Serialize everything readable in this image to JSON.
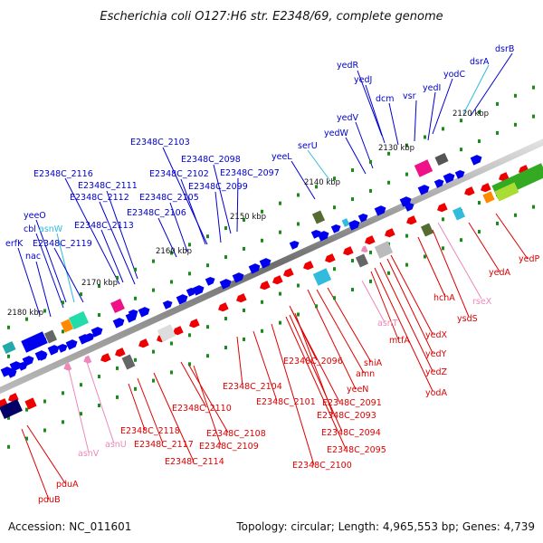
{
  "title": "Escherichia coli O127:H6 str. E2348/69, complete genome",
  "footer": {
    "accession": "Accession: NC_011601",
    "summary": "Topology: circular; Length: 4,965,553 bp; Genes: 4,739"
  },
  "colors": {
    "plus_strand_label": "#0000cc",
    "minus_strand_label": "#dd0000",
    "rna_plus": "#33bbdd",
    "rna_minus": "#ee88bb",
    "ruler": "#1a8a1a"
  },
  "ticks": [
    "2120 kbp",
    "2130 kbp",
    "2140 kbp",
    "2150 kbp",
    "2160 kbp",
    "2170 kbp",
    "2180 kbp"
  ],
  "genes_top": [
    "dsrB",
    "dsrA",
    "yodC",
    "yedI",
    "yedR",
    "yedJ",
    "dcm",
    "vsr",
    "yedV",
    "yedW",
    "serU",
    "yeeL",
    "E2348C_2103",
    "E2348C_2098",
    "E2348C_2097",
    "E2348C_2102",
    "E2348C_2099",
    "E2348C_2105",
    "E2348C_2106",
    "E2348C_2116",
    "E2348C_2111",
    "E2348C_2112",
    "E2348C_2113",
    "yeeO",
    "cbl",
    "asnW",
    "erfK",
    "E2348C_2119",
    "nac"
  ],
  "genes_bottom": [
    "yedP",
    "yedA",
    "rseX",
    "ysdS",
    "hchA",
    "yedX",
    "yedY",
    "yedZ",
    "yodA",
    "mtfA",
    "asnT",
    "shiA",
    "amn",
    "yeeN",
    "E2348C_2096",
    "E2348C_2091",
    "E2348C_2093",
    "E2348C_2094",
    "E2348C_2095",
    "E2348C_2100",
    "E2348C_2101",
    "E2348C_2104",
    "E2348C_2110",
    "E2348C_2108",
    "E2348C_2109",
    "E2348C_2118",
    "E2348C_2117",
    "E2348C_2114",
    "asnU",
    "asnV",
    "pduA",
    "pduB"
  ]
}
